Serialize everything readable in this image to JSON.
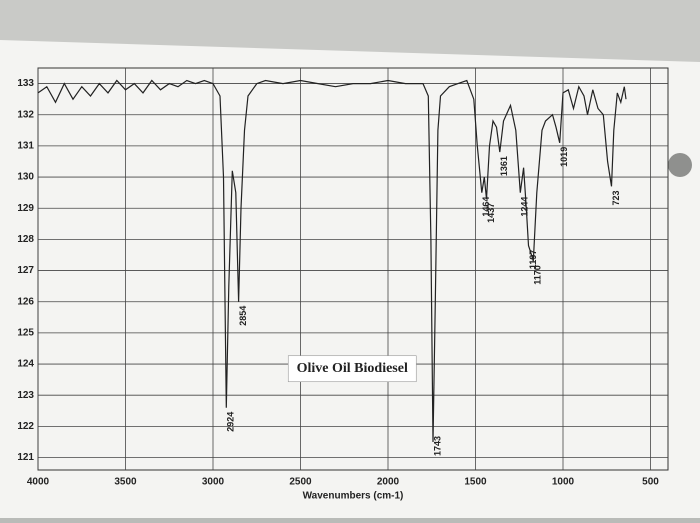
{
  "chart_data": {
    "type": "line",
    "title": "Olive Oil Biodiesel",
    "x_label": "Wavenumbers (cm-1)",
    "x": [
      4000,
      3950,
      3900,
      3850,
      3800,
      3750,
      3700,
      3650,
      3600,
      3550,
      3500,
      3450,
      3400,
      3350,
      3300,
      3250,
      3200,
      3150,
      3100,
      3050,
      3000,
      2960,
      2940,
      2924,
      2910,
      2890,
      2870,
      2854,
      2840,
      2820,
      2800,
      2750,
      2700,
      2600,
      2500,
      2400,
      2300,
      2200,
      2100,
      2000,
      1900,
      1800,
      1770,
      1755,
      1743,
      1730,
      1715,
      1700,
      1650,
      1600,
      1550,
      1510,
      1490,
      1464,
      1450,
      1437,
      1420,
      1400,
      1380,
      1361,
      1340,
      1300,
      1270,
      1244,
      1225,
      1210,
      1197,
      1185,
      1170,
      1150,
      1120,
      1100,
      1060,
      1040,
      1019,
      1000,
      970,
      940,
      910,
      880,
      860,
      830,
      800,
      770,
      745,
      723,
      710,
      690,
      670,
      650,
      640
    ],
    "series": [
      {
        "name": "Olive Oil Biodiesel",
        "color": "#222222",
        "values": [
          132.7,
          132.9,
          132.4,
          133.0,
          132.5,
          132.9,
          132.6,
          133.0,
          132.7,
          133.1,
          132.8,
          133.0,
          132.7,
          133.1,
          132.8,
          133.0,
          132.9,
          133.1,
          133.0,
          133.1,
          133.0,
          132.6,
          130.0,
          122.6,
          126.5,
          130.2,
          129.5,
          126.0,
          129.0,
          131.5,
          132.6,
          133.0,
          133.1,
          133.0,
          133.1,
          133.0,
          132.9,
          133.0,
          133.0,
          133.1,
          133.0,
          133.0,
          132.6,
          128.0,
          121.5,
          126.0,
          131.5,
          132.6,
          132.9,
          133.0,
          133.1,
          132.5,
          131.0,
          129.5,
          130.0,
          129.3,
          131.0,
          131.8,
          131.6,
          130.8,
          131.8,
          132.3,
          131.5,
          129.5,
          130.3,
          129.0,
          127.8,
          127.6,
          127.3,
          129.5,
          131.5,
          131.8,
          132.0,
          131.6,
          131.1,
          132.7,
          132.8,
          132.2,
          132.9,
          132.6,
          132.0,
          132.8,
          132.2,
          132.0,
          130.5,
          129.7,
          131.5,
          132.7,
          132.4,
          132.9,
          132.5
        ]
      }
    ],
    "peak_labels": [
      2924,
      2854,
      1743,
      1464,
      1437,
      1361,
      1244,
      1197,
      1170,
      1019,
      723
    ],
    "xlim": [
      4000,
      400
    ],
    "ylim": [
      120.6,
      133.5
    ],
    "xticks": [
      4000,
      3500,
      3000,
      2500,
      2000,
      1500,
      1000,
      500
    ],
    "yticks": [
      121,
      122,
      123,
      124,
      125,
      126,
      127,
      128,
      129,
      130,
      131,
      132,
      133
    ],
    "grid": true
  }
}
